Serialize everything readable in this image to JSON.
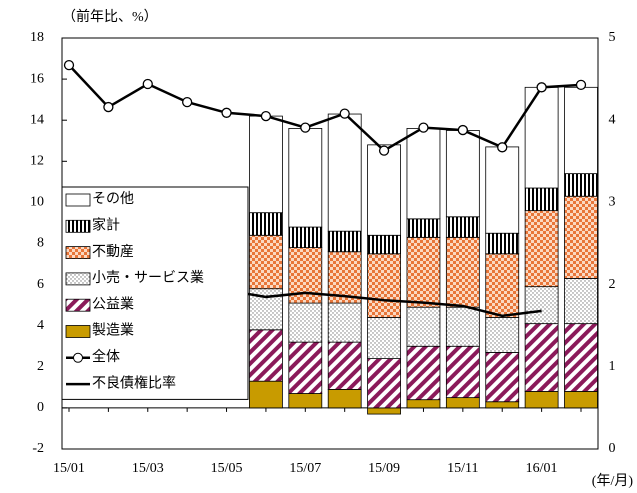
{
  "chart_data": {
    "type": "bar",
    "y_label": "（前年比、%）",
    "x_label": "(年/月)",
    "categories": [
      "15/01",
      null,
      "15/03",
      null,
      "15/05",
      null,
      "15/07",
      null,
      "15/09",
      null,
      "15/11",
      null,
      "16/01",
      null
    ],
    "ylim": [
      -2,
      18
    ],
    "yticks": [
      -2,
      0,
      2,
      4,
      6,
      8,
      10,
      12,
      14,
      16,
      18
    ],
    "y2lim": [
      0,
      5
    ],
    "y2ticks": [
      0,
      1,
      2,
      3,
      4,
      5
    ],
    "grid": false,
    "legend": "left",
    "series": [
      {
        "name": "製造業",
        "type": "bar",
        "color": "#c89b00",
        "pattern": "solid",
        "values": [
          null,
          null,
          null,
          null,
          null,
          1.3,
          0.7,
          0.9,
          -0.3,
          0.4,
          0.5,
          0.3,
          0.8,
          0.8
        ]
      },
      {
        "name": "公益業",
        "type": "bar",
        "color": "#8b1a5a",
        "pattern": "diagonal",
        "values": [
          null,
          null,
          null,
          null,
          null,
          2.5,
          2.5,
          2.3,
          2.4,
          2.6,
          2.5,
          2.4,
          3.3,
          3.3
        ]
      },
      {
        "name": "小売・サービス業",
        "type": "bar",
        "color": "#777777",
        "pattern": "dots",
        "values": [
          null,
          null,
          null,
          null,
          null,
          2.0,
          1.9,
          1.9,
          2.0,
          1.9,
          1.9,
          1.7,
          1.8,
          2.2
        ]
      },
      {
        "name": "不動産",
        "type": "bar",
        "color": "#e8763a",
        "pattern": "checker",
        "values": [
          null,
          null,
          null,
          null,
          null,
          2.6,
          2.7,
          2.5,
          3.1,
          3.4,
          3.4,
          3.1,
          3.7,
          4.0
        ]
      },
      {
        "name": "家計",
        "type": "bar",
        "color": "#000000",
        "pattern": "vertical",
        "values": [
          null,
          null,
          null,
          null,
          null,
          1.1,
          1.0,
          1.0,
          0.9,
          0.9,
          1.0,
          1.0,
          1.1,
          1.1
        ]
      },
      {
        "name": "その他",
        "type": "bar",
        "color": "#ffffff",
        "pattern": "none",
        "values": [
          null,
          null,
          null,
          null,
          null,
          4.7,
          4.8,
          5.7,
          4.4,
          4.4,
          4.2,
          4.2,
          4.9,
          4.2
        ]
      },
      {
        "name": "全体",
        "type": "line",
        "axis": "y2",
        "marker": "circle",
        "color": "#000000",
        "values": [
          4.67,
          4.16,
          4.44,
          4.22,
          4.09,
          4.05,
          3.91,
          4.08,
          3.63,
          3.91,
          3.88,
          3.67,
          4.4,
          4.43
        ]
      },
      {
        "name": "不良債権比率",
        "type": "line",
        "axis": "y2",
        "marker": "none",
        "color": "#000000",
        "values": [
          2.15,
          2.1,
          2.05,
          2.0,
          1.93,
          1.85,
          1.9,
          1.86,
          1.81,
          1.78,
          1.74,
          1.62,
          1.68,
          null
        ]
      }
    ]
  }
}
